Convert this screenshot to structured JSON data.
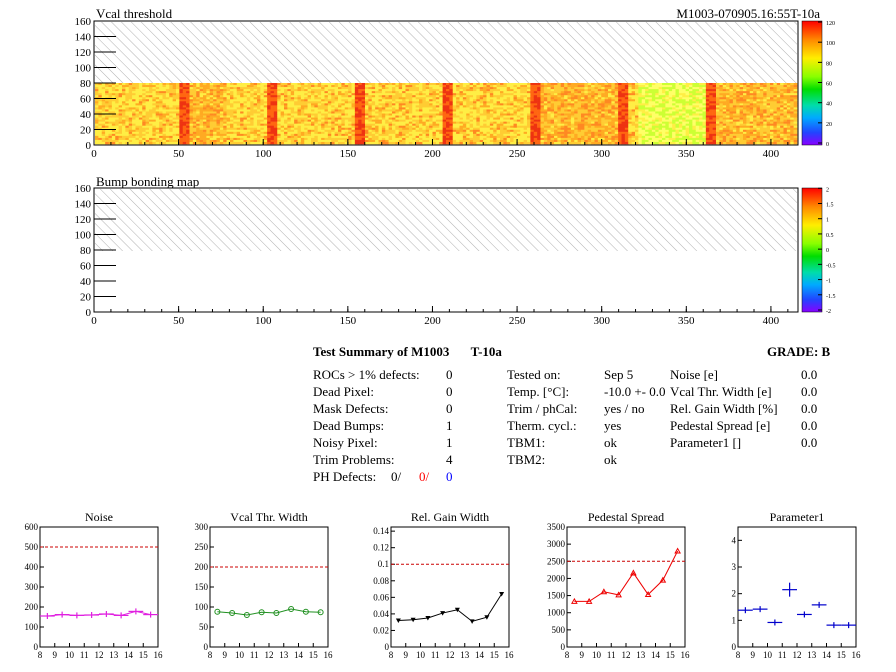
{
  "header": {
    "title_left": "Vcal threshold",
    "title_right": "M1003-070905.16:55T-10a"
  },
  "bump_title": "Bump bonding map",
  "maps": {
    "x_ticks": [
      "0",
      "50",
      "100",
      "150",
      "200",
      "250",
      "300",
      "350",
      "400"
    ],
    "y_ticks": [
      "0",
      "20",
      "40",
      "60",
      "80",
      "100",
      "120",
      "140",
      "160"
    ],
    "x_range": [
      0,
      416
    ],
    "y_range": [
      0,
      160
    ],
    "vcal_palette": [
      "0",
      "20",
      "40",
      "60",
      "80",
      "100",
      "120"
    ],
    "bump_palette": [
      "-2",
      "-1.5",
      "-1",
      "-0.5",
      "0",
      "0.5",
      "1",
      "1.5",
      "2"
    ]
  },
  "summary": {
    "title": "Test Summary of M1003",
    "temp_tag": "T-10a",
    "grade_label": "GRADE:",
    "grade": "B",
    "defects": [
      {
        "label": "ROCs > 1% defects:",
        "value": "0"
      },
      {
        "label": "Dead Pixel:",
        "value": "0"
      },
      {
        "label": "Mask Defects:",
        "value": "0"
      },
      {
        "label": "Dead Bumps:",
        "value": "1"
      },
      {
        "label": "Noisy Pixel:",
        "value": "1"
      },
      {
        "label": "Trim Problems:",
        "value": "4"
      }
    ],
    "ph_label": "PH Defects:",
    "ph_values": [
      "0/",
      "0/",
      "0"
    ],
    "ph_colors": [
      "#000000",
      "#ff0000",
      "#0000ff"
    ],
    "tests": [
      {
        "label": "Tested on:",
        "value": "Sep 5"
      },
      {
        "label": "Temp. [°C]:",
        "value": "-10.0 +- 0.0"
      },
      {
        "label": "Trim / phCal:",
        "value": "yes / no"
      },
      {
        "label": "Therm. cycl.:",
        "value": "yes"
      },
      {
        "label": "TBM1:",
        "value": "ok"
      },
      {
        "label": "TBM2:",
        "value": "ok"
      }
    ],
    "widths": [
      {
        "label": "Noise [e]",
        "value": "0.0"
      },
      {
        "label": "Vcal Thr. Width [e]",
        "value": "0.0"
      },
      {
        "label": "Rel. Gain Width [%]",
        "value": "0.0"
      },
      {
        "label": "Pedestal Spread [e]",
        "value": "0.0"
      },
      {
        "label": "Parameter1 []",
        "value": "0.0"
      }
    ]
  },
  "chart_data": [
    {
      "type": "scatter",
      "title": "Noise",
      "x": [
        8.5,
        9.5,
        10.5,
        11.5,
        12.5,
        13.5,
        14.5,
        15.5
      ],
      "values": [
        155,
        162,
        158,
        160,
        165,
        158,
        178,
        162
      ],
      "ylim": [
        0,
        600
      ],
      "xlim": [
        8,
        16
      ],
      "ref": 500,
      "color": "#e020e0",
      "marker": "cross",
      "yticks": [
        "0",
        "100",
        "200",
        "300",
        "400",
        "500",
        "600"
      ],
      "xticks": [
        "8",
        "9",
        "10",
        "11",
        "12",
        "13",
        "14",
        "15",
        "16"
      ]
    },
    {
      "type": "line",
      "title": "Vcal Thr. Width",
      "x": [
        8.5,
        9.5,
        10.5,
        11.5,
        12.5,
        13.5,
        14.5,
        15.5
      ],
      "values": [
        88,
        85,
        80,
        87,
        85,
        95,
        88,
        87
      ],
      "ylim": [
        0,
        300
      ],
      "xlim": [
        8,
        16
      ],
      "ref": 200,
      "color": "#209020",
      "marker": "circle",
      "yticks": [
        "0",
        "50",
        "100",
        "150",
        "200",
        "250",
        "300"
      ],
      "xticks": [
        "8",
        "9",
        "10",
        "11",
        "12",
        "13",
        "14",
        "15",
        "16"
      ]
    },
    {
      "type": "line",
      "title": "Rel. Gain Width",
      "x": [
        8.5,
        9.5,
        10.5,
        11.5,
        12.5,
        13.5,
        14.5,
        15.5
      ],
      "values": [
        0.032,
        0.033,
        0.035,
        0.041,
        0.045,
        0.031,
        0.036,
        0.064
      ],
      "ylim": [
        0,
        0.145
      ],
      "xlim": [
        8,
        16
      ],
      "ref": 0.1,
      "color": "#000000",
      "marker": "tri-down",
      "yticks": [
        "0",
        "0.02",
        "0.04",
        "0.06",
        "0.08",
        "0.1",
        "0.12",
        "0.14"
      ],
      "xticks": [
        "8",
        "9",
        "10",
        "11",
        "12",
        "13",
        "14",
        "15",
        "16"
      ]
    },
    {
      "type": "line",
      "title": "Pedestal Spread",
      "x": [
        8.5,
        9.5,
        10.5,
        11.5,
        12.5,
        13.5,
        14.5,
        15.5
      ],
      "values": [
        1330,
        1330,
        1610,
        1520,
        2160,
        1530,
        1950,
        2800
      ],
      "ylim": [
        0,
        3500
      ],
      "xlim": [
        8,
        16
      ],
      "ref": 2500,
      "color": "#ee0000",
      "marker": "tri-up",
      "yticks": [
        "0",
        "500",
        "1000",
        "1500",
        "2000",
        "2500",
        "3000",
        "3500"
      ],
      "xticks": [
        "8",
        "9",
        "10",
        "11",
        "12",
        "13",
        "14",
        "15",
        "16"
      ]
    },
    {
      "type": "scatter",
      "title": "Parameter1",
      "x": [
        8.5,
        9.5,
        10.5,
        11.5,
        12.5,
        13.5,
        14.5,
        15.5
      ],
      "values": [
        1.38,
        1.42,
        0.92,
        2.15,
        1.22,
        1.58,
        0.82,
        0.82
      ],
      "ylim": [
        0,
        4.5
      ],
      "xlim": [
        8,
        16
      ],
      "color": "#0000cc",
      "marker": "cross",
      "yticks": [
        "0",
        "1",
        "2",
        "3",
        "4"
      ],
      "xticks": [
        "8",
        "9",
        "10",
        "11",
        "12",
        "13",
        "14",
        "15",
        "16"
      ]
    }
  ]
}
